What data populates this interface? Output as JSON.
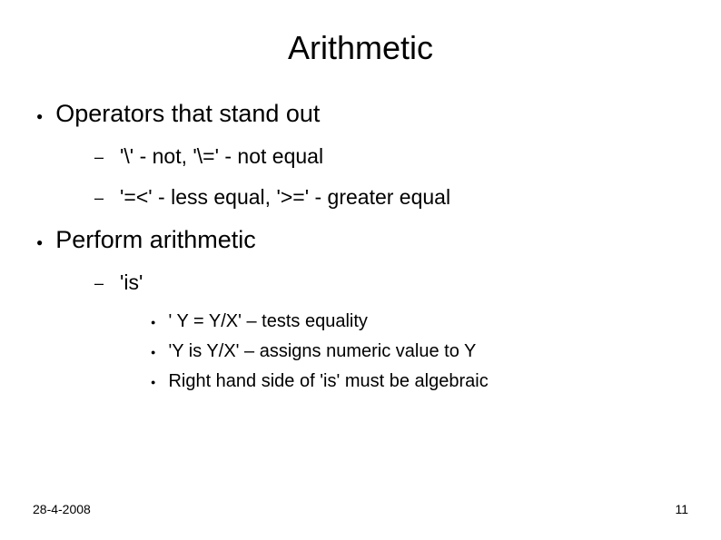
{
  "title": "Arithmetic",
  "sections": [
    {
      "label": "Operators that stand out",
      "subitems": [
        {
          "label": "'\\' - not, '\\=' - not equal"
        },
        {
          "label": "'=<' - less equal, '>=' - greater equal"
        }
      ]
    },
    {
      "label": "Perform arithmetic",
      "subitems": [
        {
          "label": "'is'",
          "subsubitems": [
            {
              "label": "' Y = Y/X' – tests equality"
            },
            {
              "label": "'Y is Y/X' – assigns numeric value to Y"
            },
            {
              "label": "Right hand side of 'is' must be algebraic"
            }
          ]
        }
      ]
    }
  ],
  "footer": {
    "date": "28-4-2008",
    "page": "11"
  },
  "bullets": {
    "l1": "●",
    "l2": "–",
    "l3": "●"
  },
  "style": {
    "background_color": "#ffffff",
    "text_color": "#000000",
    "title_fontsize": 36,
    "l1_fontsize": 27,
    "l2_fontsize": 23,
    "l3_fontsize": 20,
    "footer_fontsize": 14
  }
}
